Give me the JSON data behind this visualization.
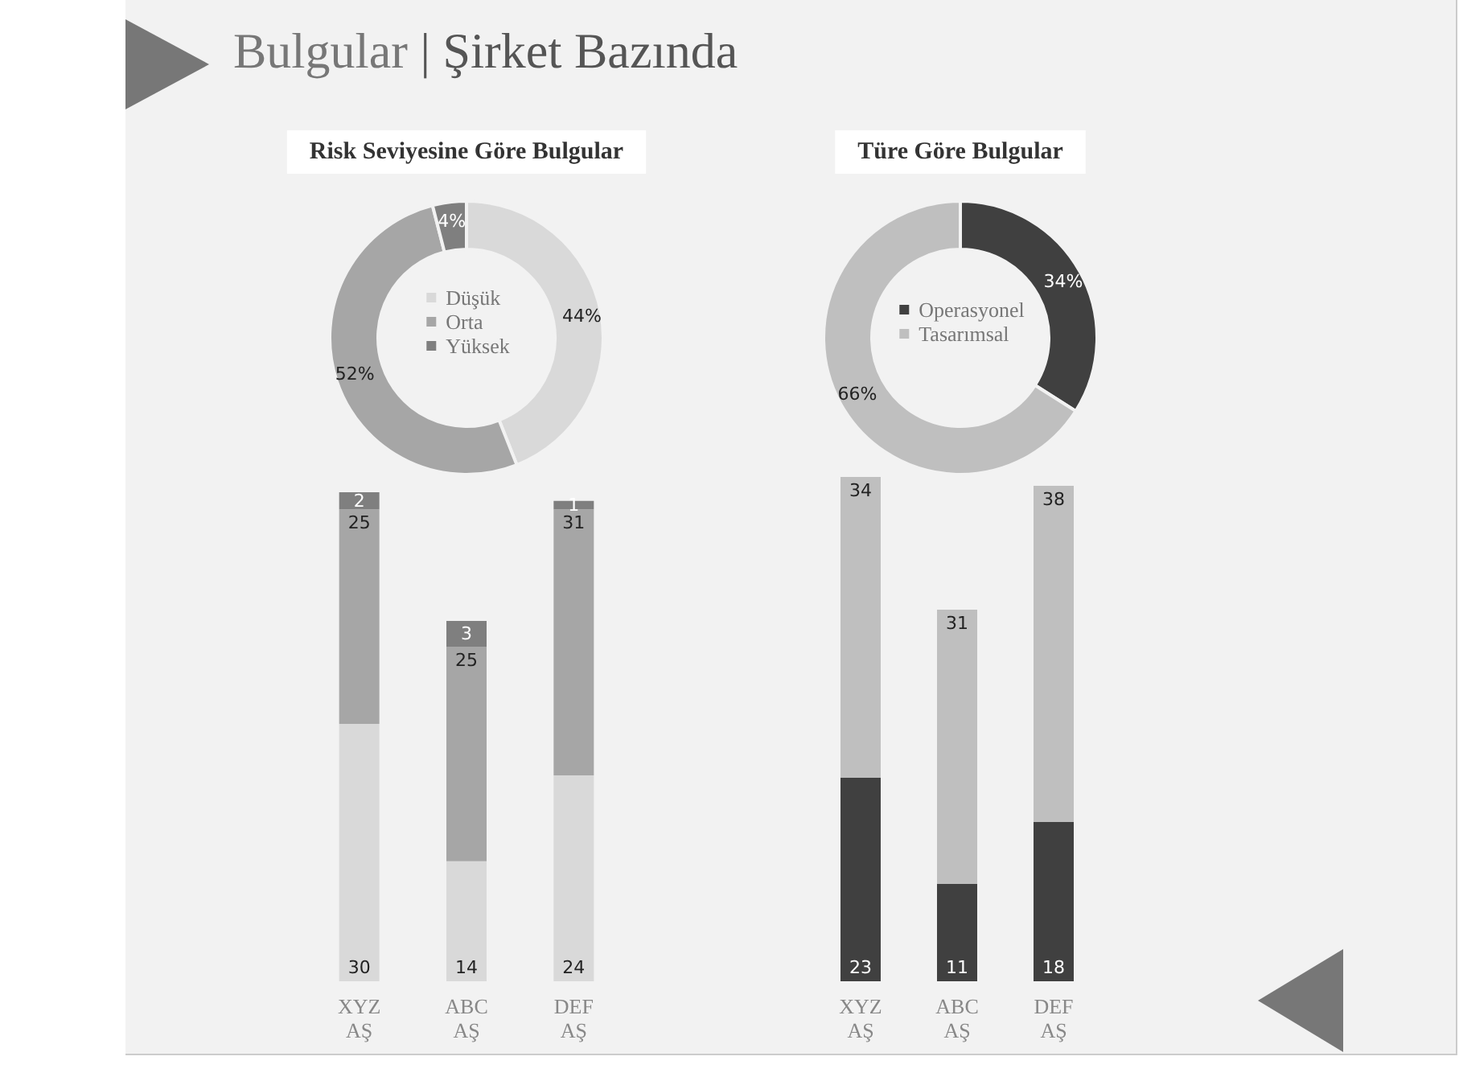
{
  "chart_data": [
    {
      "type": "other",
      "title": "Bulgular | Şirket Bazında"
    },
    {
      "type": "donut",
      "title": "Risk Seviyesine Göre Bulgular",
      "categories": [
        "Düşük",
        "Orta",
        "Yüksek"
      ],
      "values": [
        44,
        52,
        4
      ],
      "value_labels": [
        "44%",
        "52%",
        "4%"
      ],
      "colors": [
        "#d9d9d9",
        "#a6a6a6",
        "#7f7f7f"
      ],
      "legend": "center"
    },
    {
      "type": "donut",
      "title": "Türe Göre Bulgular",
      "categories": [
        "Operasyonel",
        "Tasarımsal"
      ],
      "values": [
        34,
        66
      ],
      "value_labels": [
        "34%",
        "66%"
      ],
      "colors": [
        "#404040",
        "#bfbfbf"
      ],
      "legend": "center"
    },
    {
      "type": "bar",
      "stacked": true,
      "data_labels": true,
      "categories": [
        "XYZ AŞ",
        "ABC AŞ",
        "DEF AŞ"
      ],
      "series": [
        {
          "color": "#d9d9d9",
          "values": [
            30,
            14,
            24
          ]
        },
        {
          "color": "#a6a6a6",
          "values": [
            25,
            25,
            31
          ]
        },
        {
          "color": "#7f7f7f",
          "values": [
            2,
            3,
            1
          ]
        }
      ]
    },
    {
      "type": "bar",
      "stacked": true,
      "data_labels": true,
      "categories": [
        "XYZ AŞ",
        "ABC AŞ",
        "DEF AŞ"
      ],
      "series": [
        {
          "color": "#404040",
          "values": [
            23,
            11,
            18
          ]
        },
        {
          "color": "#bfbfbf",
          "values": [
            34,
            31,
            38
          ]
        }
      ]
    }
  ]
}
